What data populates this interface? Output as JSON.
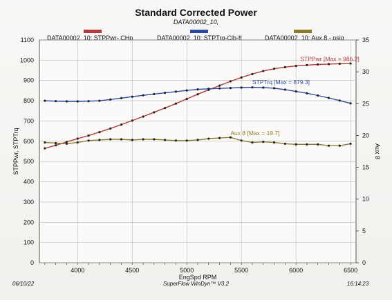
{
  "header": {
    "title": "Standard Corrected Power",
    "subtitle": "DATA00002_10,"
  },
  "legend": [
    {
      "label": "DATA00002_10: STPPwr- CHp",
      "color": "#b23a3a"
    },
    {
      "label": "DATA00002_10: STPTrq-Clb-ft",
      "color": "#2a4aa0"
    },
    {
      "label": "DATA00002_10: Aux 8 - psig",
      "color": "#8a7a2a"
    }
  ],
  "footer": {
    "date": "06/10/22",
    "software": "SuperFlow WinDyn™ V3.2",
    "time": "16:14:23"
  },
  "chart_data": {
    "type": "line",
    "xlabel": "EngSpd  RPM",
    "ylabel_left": "STPPwr, STPTrq",
    "ylabel_right": "Aux 8",
    "xlim": [
      3650,
      6550
    ],
    "x_ticks": [
      4000,
      4500,
      5000,
      5500,
      6000,
      6500
    ],
    "ylim_left": [
      0,
      1100
    ],
    "y_ticks_left": [
      0,
      100,
      200,
      300,
      400,
      500,
      600,
      700,
      800,
      900,
      1000,
      1100
    ],
    "ylim_right": [
      0,
      35
    ],
    "y_ticks_right": [
      0,
      5,
      10,
      15,
      20,
      25,
      30,
      35
    ],
    "grid": true,
    "x": [
      3700,
      3800,
      3900,
      4000,
      4100,
      4200,
      4300,
      4400,
      4500,
      4600,
      4700,
      4800,
      4900,
      5000,
      5100,
      5200,
      5300,
      5400,
      5500,
      5600,
      5700,
      5800,
      5900,
      6000,
      6100,
      6200,
      6300,
      6400,
      6500
    ],
    "series": [
      {
        "name": "STPPwr",
        "axis": "left",
        "color": "#b23a3a",
        "values": [
          565,
          580,
          597,
          613,
          628,
          645,
          663,
          682,
          702,
          722,
          743,
          764,
          786,
          809,
          832,
          854,
          875,
          896,
          915,
          932,
          947,
          958,
          966,
          972,
          976,
          979,
          981,
          983,
          984
        ]
      },
      {
        "name": "STPTrq",
        "axis": "left",
        "color": "#2a4aa0",
        "values": [
          800,
          798,
          797,
          797,
          798,
          800,
          806,
          813,
          820,
          827,
          833,
          839,
          845,
          851,
          856,
          859,
          861,
          863,
          865,
          866,
          865,
          862,
          855,
          846,
          837,
          826,
          814,
          801,
          787
        ]
      },
      {
        "name": "Aux 8",
        "axis": "right",
        "color": "#8a7a2a",
        "values": [
          18.9,
          18.8,
          18.7,
          18.9,
          19.2,
          19.3,
          19.4,
          19.4,
          19.3,
          19.4,
          19.4,
          19.3,
          19.2,
          19.2,
          19.3,
          19.5,
          19.6,
          19.7,
          19.2,
          18.9,
          19.0,
          18.9,
          18.7,
          18.6,
          18.6,
          18.6,
          18.4,
          18.4,
          18.7
        ]
      }
    ],
    "annotations": [
      {
        "text": "STPPwr [Max = 986.2]",
        "color": "#b23a3a"
      },
      {
        "text": "STPTrq [Max = 879.3]",
        "color": "#2a4aa0"
      },
      {
        "text": "Aux 8  [Max = 19.7]",
        "color": "#8a7a2a"
      }
    ]
  }
}
